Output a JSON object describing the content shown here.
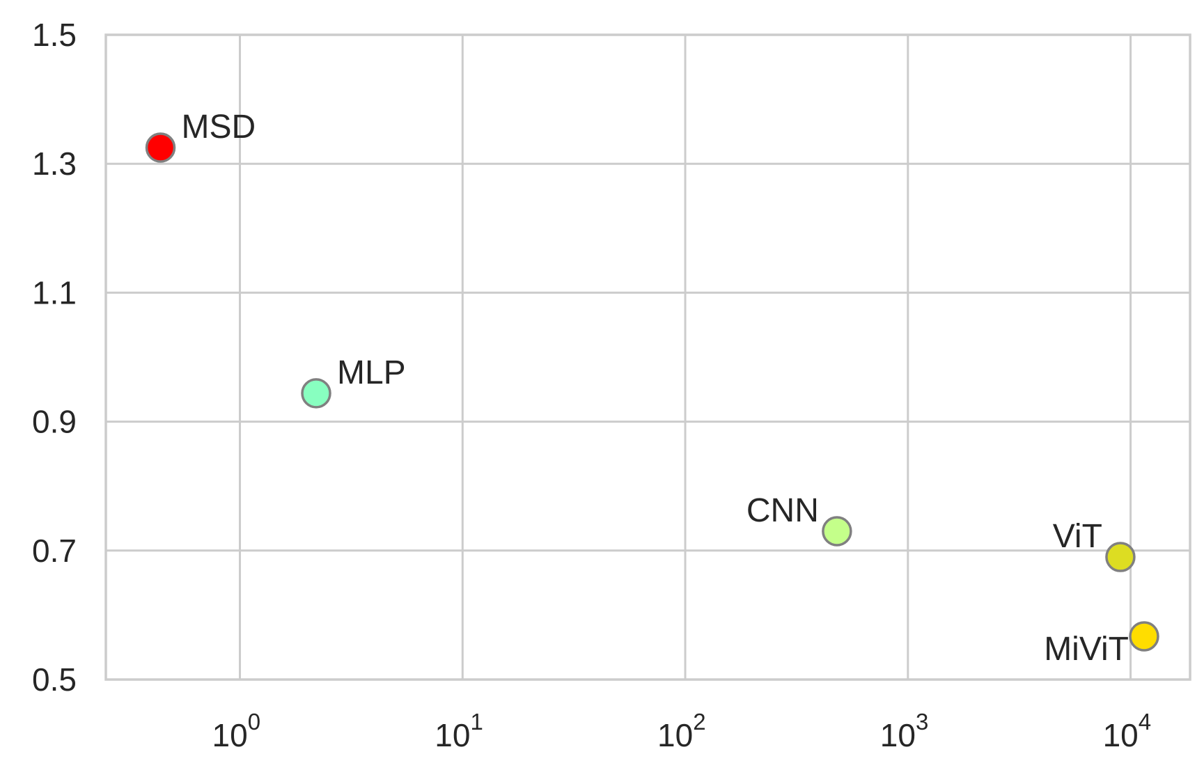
{
  "chart_data": {
    "type": "scatter",
    "title": "",
    "xlabel": "",
    "ylabel": "",
    "xscale": "log",
    "xlim": [
      0.25,
      18500
    ],
    "ylim": [
      0.5,
      1.5
    ],
    "grid": true,
    "x_ticks": [
      {
        "value": 1,
        "base": "10",
        "exp": "0"
      },
      {
        "value": 10,
        "base": "10",
        "exp": "1"
      },
      {
        "value": 100,
        "base": "10",
        "exp": "2"
      },
      {
        "value": 1000,
        "base": "10",
        "exp": "3"
      },
      {
        "value": 10000,
        "base": "10",
        "exp": "4"
      }
    ],
    "y_ticks": [
      {
        "value": 0.5,
        "label": "0.5"
      },
      {
        "value": 0.7,
        "label": "0.7"
      },
      {
        "value": 0.9,
        "label": "0.9"
      },
      {
        "value": 1.1,
        "label": "1.1"
      },
      {
        "value": 1.3,
        "label": "1.3"
      },
      {
        "value": 1.5,
        "label": "1.5"
      }
    ],
    "points": [
      {
        "label": "MSD",
        "x": 0.44,
        "y": 1.325,
        "color": "#ff0000",
        "label_side": "right"
      },
      {
        "label": "MLP",
        "x": 2.2,
        "y": 0.944,
        "color": "#88ffc0",
        "label_side": "right"
      },
      {
        "label": "CNN",
        "x": 480,
        "y": 0.73,
        "color": "#c4ff8a",
        "label_side": "left"
      },
      {
        "label": "ViT",
        "x": 9000,
        "y": 0.69,
        "color": "#dddd22",
        "label_side": "left"
      },
      {
        "label": "MiViT",
        "x": 11500,
        "y": 0.567,
        "color": "#ffdd00",
        "label_side": "left-below"
      }
    ],
    "marker_edge_color": "#808080",
    "grid_color": "#cccccc"
  }
}
